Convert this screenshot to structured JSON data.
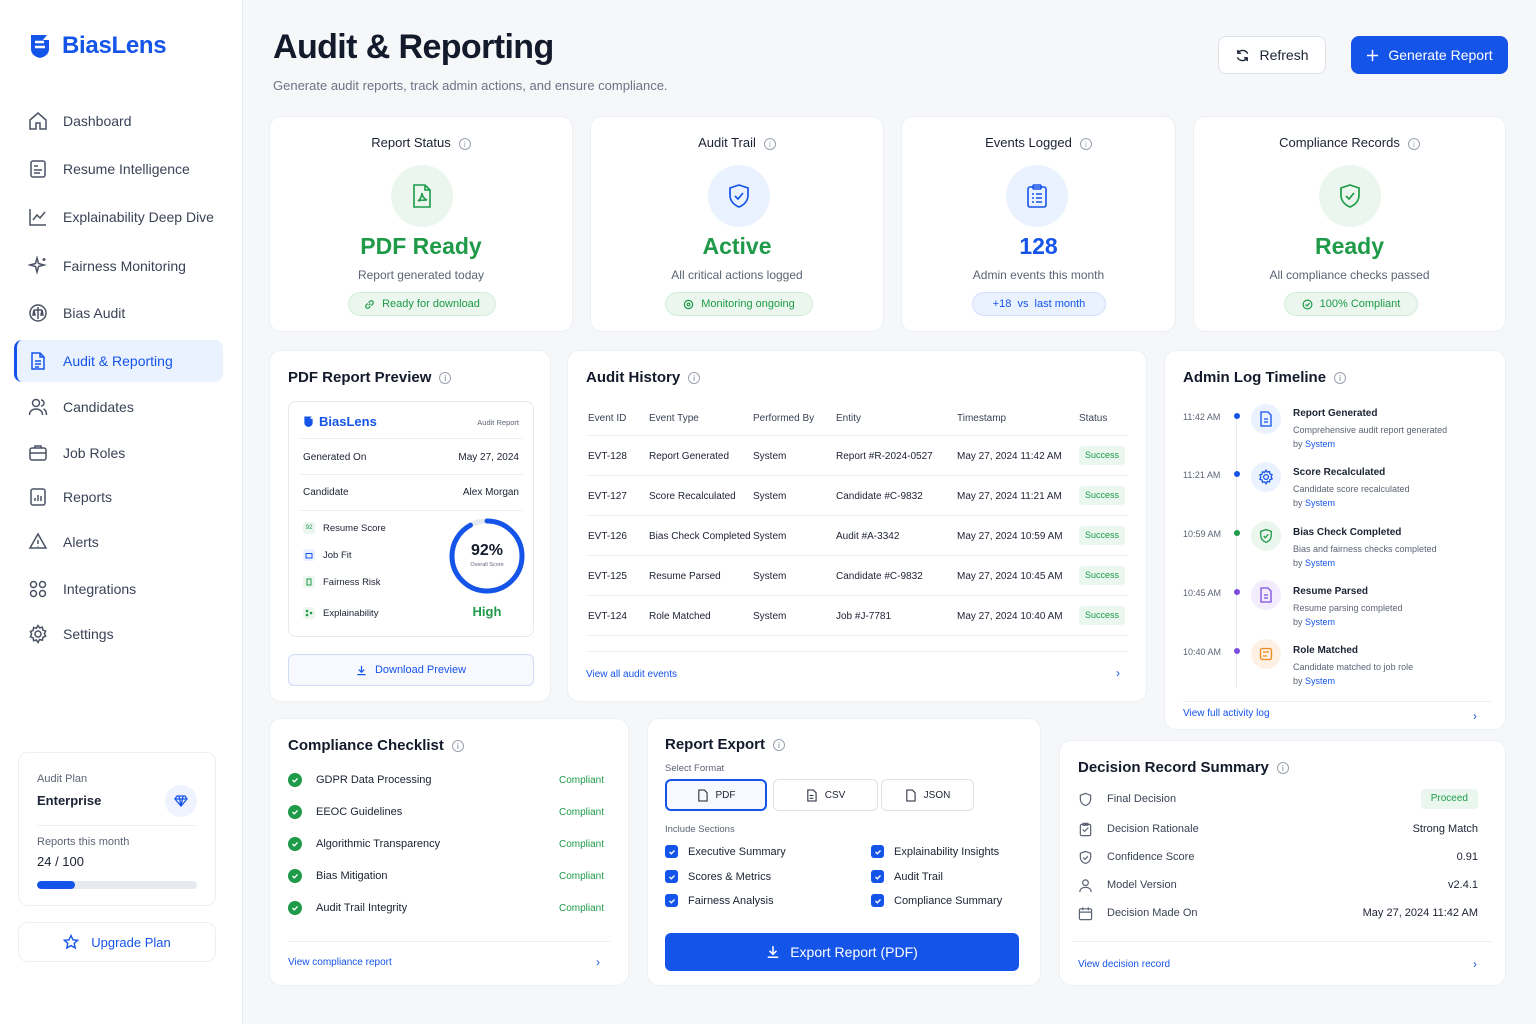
{
  "app": {
    "name": "BiasLens"
  },
  "sidebar": {
    "items": [
      {
        "label": "Dashboard",
        "icon": "home-icon"
      },
      {
        "label": "Resume Intelligence",
        "icon": "resume-icon"
      },
      {
        "label": "Explainability Deep Dive",
        "icon": "chart-line-icon"
      },
      {
        "label": "Fairness Monitoring",
        "icon": "sparkle-icon"
      },
      {
        "label": "Bias Audit",
        "icon": "scale-icon"
      },
      {
        "label": "Audit & Reporting",
        "icon": "document-icon",
        "active": true
      },
      {
        "label": "Candidates",
        "icon": "users-icon"
      },
      {
        "label": "Job Roles",
        "icon": "briefcase-icon"
      },
      {
        "label": "Reports",
        "icon": "report-icon"
      },
      {
        "label": "Alerts",
        "icon": "bell-icon"
      },
      {
        "label": "Integrations",
        "icon": "grid-icon"
      },
      {
        "label": "Settings",
        "icon": "gear-icon"
      }
    ],
    "plan": {
      "label": "Audit Plan",
      "name": "Enterprise",
      "reports_label": "Reports this month",
      "reports_value": "24 / 100",
      "usage_fraction": 0.24
    },
    "upgrade_label": "Upgrade Plan"
  },
  "header": {
    "title": "Audit & Reporting",
    "subtitle": "Generate audit reports, track admin actions, and ensure compliance.",
    "refresh_label": "Refresh",
    "generate_label": "Generate Report"
  },
  "stats": [
    {
      "title": "Report Status",
      "value": "PDF Ready",
      "sub": "Report generated today",
      "pill": "Ready for download",
      "color": "#1e9a48"
    },
    {
      "title": "Audit Trail",
      "value": "Active",
      "sub": "All critical actions logged",
      "pill": "Monitoring ongoing",
      "color": "#1e9a48"
    },
    {
      "title": "Events Logged",
      "value": "128",
      "sub": "Admin events this month",
      "pill": "+18  vs  last month",
      "color": "#1554e8"
    },
    {
      "title": "Compliance Records",
      "value": "Ready",
      "sub": "All compliance checks passed",
      "pill": "100% Compliant",
      "color": "#1e9a48"
    }
  ],
  "pdf_preview": {
    "title": "PDF Report Preview",
    "brand": "BiasLens",
    "doc_type": "Audit Report",
    "generated_label": "Generated On",
    "generated_value": "May 27, 2024",
    "candidate_label": "Candidate",
    "candidate_value": "Alex Morgan",
    "metrics": [
      {
        "label": "Resume Score",
        "badge": "92"
      },
      {
        "label": "Job Fit",
        "badge": ""
      },
      {
        "label": "Fairness Risk",
        "badge": ""
      },
      {
        "label": "Explainability",
        "badge": ""
      }
    ],
    "overall_score": "92%",
    "overall_fraction": 0.92,
    "overall_label": "Overall Score",
    "level": "High",
    "download_label": "Download Preview"
  },
  "audit_history": {
    "title": "Audit History",
    "columns": [
      "Event ID",
      "Event Type",
      "Performed By",
      "Entity",
      "Timestamp",
      "Status"
    ],
    "rows": [
      {
        "id": "EVT-128",
        "type": "Report Generated",
        "by": "System",
        "entity": "Report #R-2024-0527",
        "time": "May 27, 2024 11:42 AM",
        "status": "Success"
      },
      {
        "id": "EVT-127",
        "type": "Score Recalculated",
        "by": "System",
        "entity": "Candidate #C-9832",
        "time": "May 27, 2024 11:21 AM",
        "status": "Success"
      },
      {
        "id": "EVT-126",
        "type": "Bias Check Completed",
        "by": "System",
        "entity": "Audit #A-3342",
        "time": "May 27, 2024 10:59 AM",
        "status": "Success"
      },
      {
        "id": "EVT-125",
        "type": "Resume Parsed",
        "by": "System",
        "entity": "Candidate #C-9832",
        "time": "May 27, 2024 10:45 AM",
        "status": "Success"
      },
      {
        "id": "EVT-124",
        "type": "Role Matched",
        "by": "System",
        "entity": "Job #J-7781",
        "time": "May 27, 2024 10:40 AM",
        "status": "Success"
      }
    ],
    "link": "View all audit events"
  },
  "timeline": {
    "title": "Admin Log Timeline",
    "by_label": "by",
    "items": [
      {
        "time": "11:42 AM",
        "title": "Report Generated",
        "desc": "Comprehensive audit report generated",
        "by": "System",
        "color": "#1554e8",
        "icon": "document-icon"
      },
      {
        "time": "11:21 AM",
        "title": "Score Recalculated",
        "desc": "Candidate score recalculated",
        "by": "System",
        "color": "#1554e8",
        "icon": "gear-icon"
      },
      {
        "time": "10:59 AM",
        "title": "Bias Check Completed",
        "desc": "Bias and fairness checks completed",
        "by": "System",
        "color": "#1e9a48",
        "icon": "shield-check-icon"
      },
      {
        "time": "10:45 AM",
        "title": "Resume Parsed",
        "desc": "Resume parsing completed",
        "by": "System",
        "color": "#7c4ddb",
        "icon": "file-icon"
      },
      {
        "time": "10:40 AM",
        "title": "Role Matched",
        "desc": "Candidate matched to job role",
        "by": "System",
        "color": "#f08a1c",
        "icon": "match-icon"
      }
    ],
    "link": "View full activity log"
  },
  "compliance": {
    "title": "Compliance Checklist",
    "items": [
      {
        "label": "GDPR Data Processing",
        "status": "Compliant"
      },
      {
        "label": "EEOC Guidelines",
        "status": "Compliant"
      },
      {
        "label": "Algorithmic Transparency",
        "status": "Compliant"
      },
      {
        "label": "Bias Mitigation",
        "status": "Compliant"
      },
      {
        "label": "Audit Trail Integrity",
        "status": "Compliant"
      }
    ],
    "link": "View compliance report"
  },
  "export": {
    "title": "Report Export",
    "format_label": "Select Format",
    "formats": [
      "PDF",
      "CSV",
      "JSON"
    ],
    "selected": "PDF",
    "sections_label": "Include Sections",
    "sections": [
      "Executive Summary",
      "Explainability Insights",
      "Scores & Metrics",
      "Audit Trail",
      "Fairness Analysis",
      "Compliance Summary"
    ],
    "button_label": "Export Report (PDF)"
  },
  "decision": {
    "title": "Decision Record Summary",
    "rows": [
      {
        "label": "Final Decision",
        "value": "Proceed",
        "icon": "shield-icon"
      },
      {
        "label": "Decision Rationale",
        "value": "Strong Match",
        "icon": "clipboard-icon"
      },
      {
        "label": "Confidence Score",
        "value": "0.91",
        "icon": "shield-check-icon"
      },
      {
        "label": "Model Version",
        "value": "v2.4.1",
        "icon": "user-icon"
      },
      {
        "label": "Decision Made On",
        "value": "May 27, 2024 11:42 AM",
        "icon": "calendar-icon"
      }
    ],
    "link": "View decision record"
  }
}
